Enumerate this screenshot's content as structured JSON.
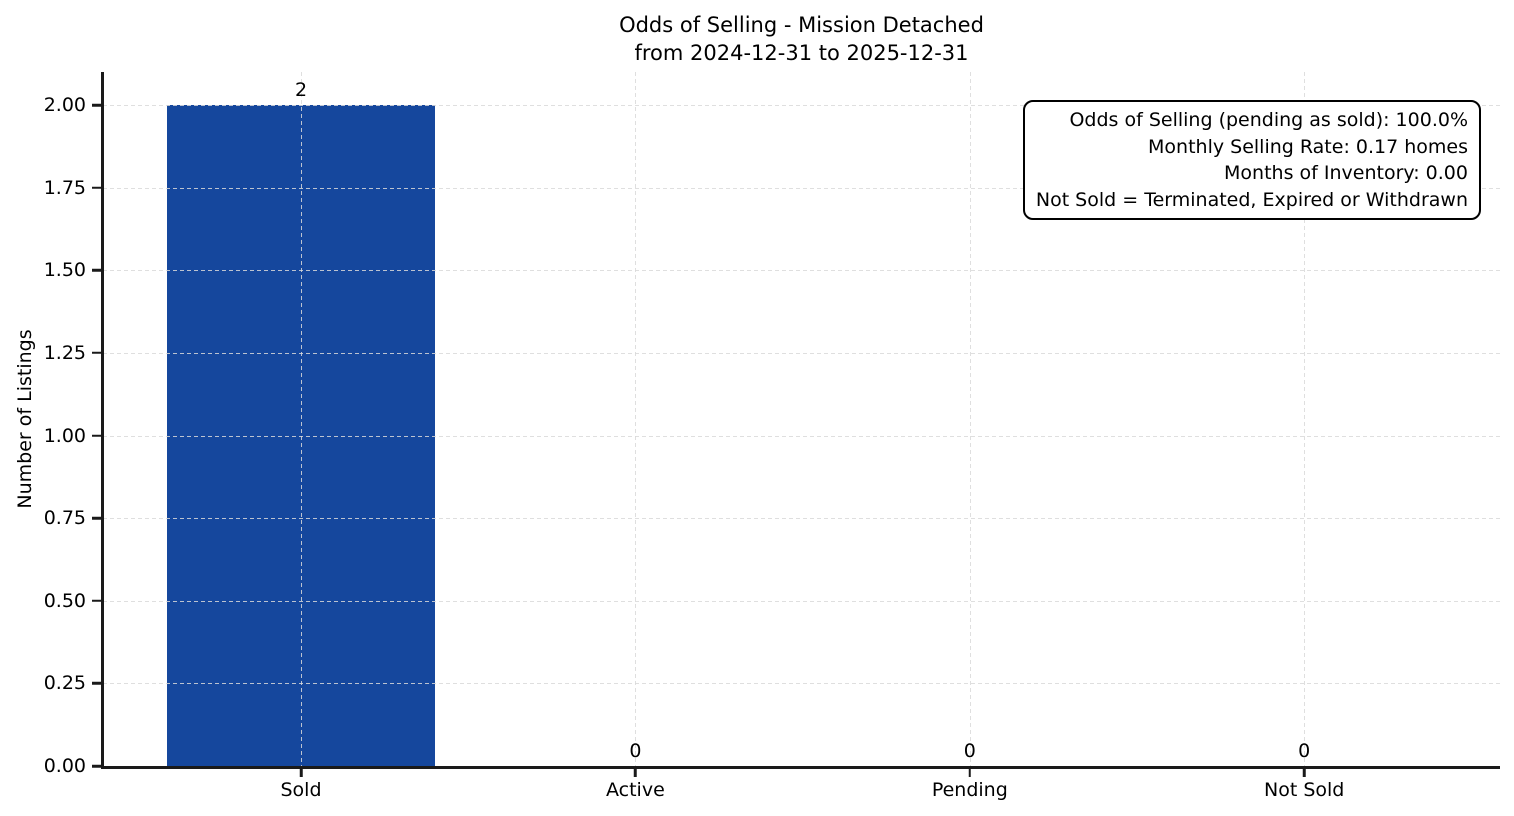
{
  "chart_data": {
    "type": "bar",
    "title": "Odds of Selling - Mission Detached",
    "subtitle": "from 2024-12-31 to 2025-12-31",
    "categories": [
      "Sold",
      "Active",
      "Pending",
      "Not Sold"
    ],
    "values": [
      2,
      0,
      0,
      0
    ],
    "bar_value_labels": [
      "2",
      "0",
      "0",
      "0"
    ],
    "ylabel": "Number of Listings",
    "ytick_labels": [
      "0.00",
      "0.25",
      "0.50",
      "0.75",
      "1.00",
      "1.25",
      "1.50",
      "1.75",
      "2.00"
    ],
    "ytick_values": [
      0,
      0.25,
      0.5,
      0.75,
      1,
      1.25,
      1.5,
      1.75,
      2
    ],
    "ylim": [
      0,
      2.1
    ],
    "grid": "dashed-both-axes",
    "legend_position": "none",
    "colors": {
      "bar": "#15479D",
      "grid": "#d9d9d9",
      "axis": "#1a1a1a",
      "text": "#000000",
      "background": "#ffffff"
    },
    "annotation": {
      "lines": [
        "Odds of Selling (pending as sold): 100.0%",
        "Monthly Selling Rate: 0.17 homes",
        "Months of Inventory: 0.00",
        "Not Sold = Terminated, Expired or Withdrawn"
      ]
    }
  }
}
